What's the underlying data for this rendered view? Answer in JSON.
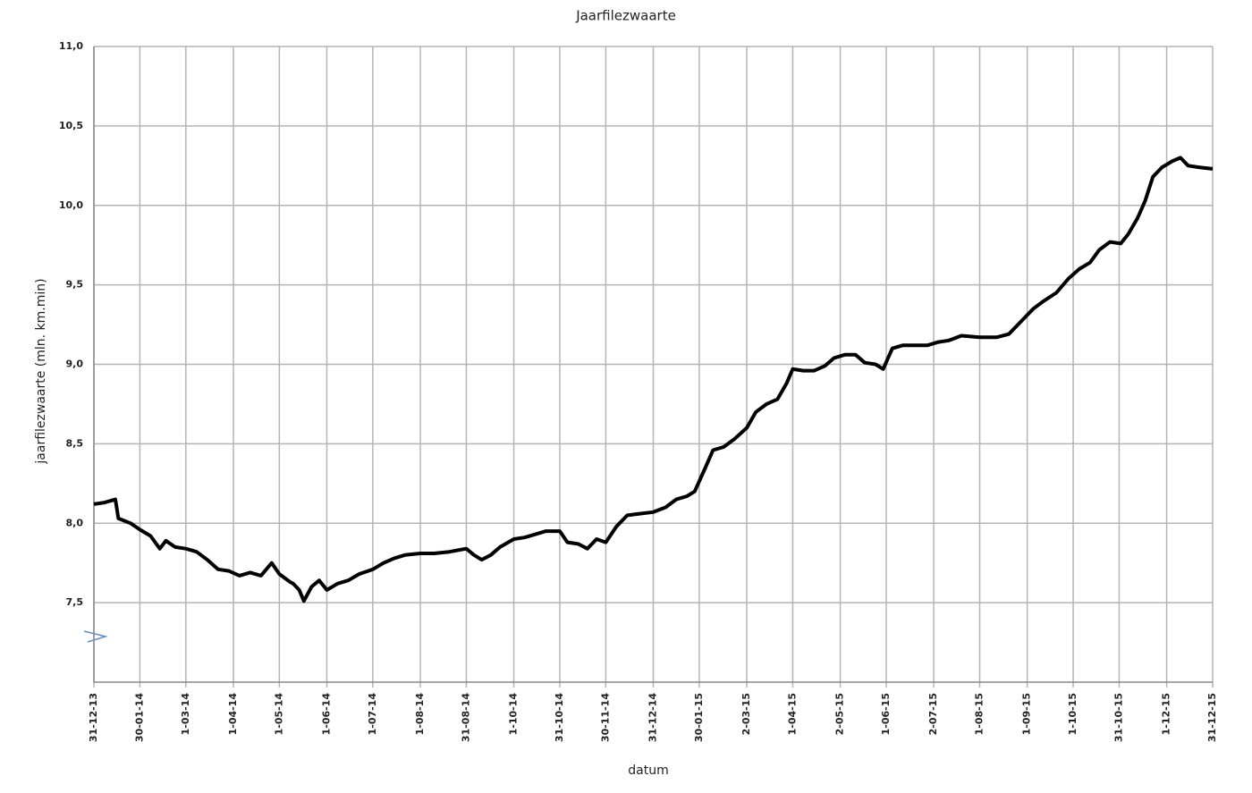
{
  "chart_data": {
    "type": "line",
    "title": "Jaarfilezwaarte",
    "x_label": "datum",
    "y_label": "jaarfilezwaarte (mln. km.min)",
    "x": [
      "2013-12-31",
      "2014-01-07",
      "2014-01-14",
      "2014-01-16",
      "2014-01-24",
      "2014-01-30",
      "2014-02-06",
      "2014-02-12",
      "2014-02-16",
      "2014-02-22",
      "2014-03-01",
      "2014-03-08",
      "2014-03-15",
      "2014-03-22",
      "2014-03-29",
      "2014-04-05",
      "2014-04-12",
      "2014-04-19",
      "2014-04-26",
      "2014-05-01",
      "2014-05-08",
      "2014-05-10",
      "2014-05-14",
      "2014-05-17",
      "2014-05-22",
      "2014-05-27",
      "2014-06-01",
      "2014-06-08",
      "2014-06-15",
      "2014-06-22",
      "2014-07-01",
      "2014-07-08",
      "2014-07-15",
      "2014-07-22",
      "2014-08-01",
      "2014-08-10",
      "2014-08-20",
      "2014-08-31",
      "2014-09-05",
      "2014-09-10",
      "2014-09-16",
      "2014-09-22",
      "2014-10-01",
      "2014-10-08",
      "2014-10-15",
      "2014-10-22",
      "2014-10-31",
      "2014-11-05",
      "2014-11-12",
      "2014-11-18",
      "2014-11-24",
      "2014-11-30",
      "2014-12-07",
      "2014-12-14",
      "2014-12-22",
      "2014-12-31",
      "2015-01-08",
      "2015-01-15",
      "2015-01-22",
      "2015-01-27",
      "2015-02-03",
      "2015-02-08",
      "2015-02-15",
      "2015-02-22",
      "2015-03-02",
      "2015-03-08",
      "2015-03-15",
      "2015-03-22",
      "2015-03-28",
      "2015-04-01",
      "2015-04-08",
      "2015-04-15",
      "2015-04-22",
      "2015-04-28",
      "2015-05-05",
      "2015-05-12",
      "2015-05-18",
      "2015-05-25",
      "2015-05-30",
      "2015-06-05",
      "2015-06-12",
      "2015-06-20",
      "2015-06-28",
      "2015-07-05",
      "2015-07-12",
      "2015-07-20",
      "2015-08-01",
      "2015-08-12",
      "2015-08-20",
      "2015-08-28",
      "2015-09-05",
      "2015-09-12",
      "2015-09-20",
      "2015-09-28",
      "2015-10-05",
      "2015-10-12",
      "2015-10-18",
      "2015-10-25",
      "2015-11-01",
      "2015-11-06",
      "2015-11-12",
      "2015-11-17",
      "2015-11-22",
      "2015-11-28",
      "2015-12-05",
      "2015-12-10",
      "2015-12-15",
      "2015-12-22",
      "2015-12-31"
    ],
    "values": [
      8.12,
      8.13,
      8.15,
      8.03,
      8.0,
      7.96,
      7.92,
      7.84,
      7.89,
      7.85,
      7.84,
      7.82,
      7.77,
      7.71,
      7.7,
      7.67,
      7.69,
      7.67,
      7.75,
      7.68,
      7.63,
      7.62,
      7.58,
      7.51,
      7.6,
      7.64,
      7.58,
      7.62,
      7.64,
      7.68,
      7.71,
      7.75,
      7.78,
      7.8,
      7.81,
      7.81,
      7.82,
      7.84,
      7.8,
      7.77,
      7.8,
      7.85,
      7.9,
      7.91,
      7.93,
      7.95,
      7.95,
      7.88,
      7.87,
      7.84,
      7.9,
      7.88,
      7.98,
      8.05,
      8.06,
      8.07,
      8.1,
      8.15,
      8.17,
      8.2,
      8.35,
      8.46,
      8.48,
      8.53,
      8.6,
      8.7,
      8.75,
      8.78,
      8.88,
      8.97,
      8.96,
      8.96,
      8.99,
      9.04,
      9.06,
      9.06,
      9.01,
      9.0,
      8.97,
      9.1,
      9.12,
      9.12,
      9.12,
      9.14,
      9.15,
      9.18,
      9.17,
      9.17,
      9.19,
      9.27,
      9.35,
      9.4,
      9.45,
      9.54,
      9.6,
      9.64,
      9.72,
      9.77,
      9.76,
      9.82,
      9.92,
      10.03,
      10.18,
      10.24,
      10.28,
      10.3,
      10.25,
      10.24,
      10.23
    ],
    "color": "#000000",
    "xlim": [
      "2013-12-31",
      "2015-12-31"
    ],
    "xticks": [
      {
        "value": "2013-12-31",
        "label": "31-12-13"
      },
      {
        "value": "2014-01-30",
        "label": "30-01-14"
      },
      {
        "value": "2014-03-01",
        "label": "1-03-14"
      },
      {
        "value": "2014-04-01",
        "label": "1-04-14"
      },
      {
        "value": "2014-05-01",
        "label": "1-05-14"
      },
      {
        "value": "2014-06-01",
        "label": "1-06-14"
      },
      {
        "value": "2014-07-01",
        "label": "1-07-14"
      },
      {
        "value": "2014-08-01",
        "label": "1-08-14"
      },
      {
        "value": "2014-08-31",
        "label": "31-08-14"
      },
      {
        "value": "2014-10-01",
        "label": "1-10-14"
      },
      {
        "value": "2014-10-31",
        "label": "31-10-14"
      },
      {
        "value": "2014-11-30",
        "label": "30-11-14"
      },
      {
        "value": "2014-12-31",
        "label": "31-12-14"
      },
      {
        "value": "2015-01-30",
        "label": "30-01-15"
      },
      {
        "value": "2015-03-02",
        "label": "2-03-15"
      },
      {
        "value": "2015-04-01",
        "label": "1-04-15"
      },
      {
        "value": "2015-05-02",
        "label": "2-05-15"
      },
      {
        "value": "2015-06-01",
        "label": "1-06-15"
      },
      {
        "value": "2015-07-02",
        "label": "2-07-15"
      },
      {
        "value": "2015-08-01",
        "label": "1-08-15"
      },
      {
        "value": "2015-09-01",
        "label": "1-09-15"
      },
      {
        "value": "2015-10-01",
        "label": "1-10-15"
      },
      {
        "value": "2015-10-31",
        "label": "31-10-15"
      },
      {
        "value": "2015-12-01",
        "label": "1-12-15"
      },
      {
        "value": "2015-12-31",
        "label": "31-12-15"
      }
    ],
    "ylim": [
      7.0,
      11.0
    ],
    "yticks": [
      {
        "value": 7.5,
        "label": "7,5"
      },
      {
        "value": 8.0,
        "label": "8,0"
      },
      {
        "value": 8.5,
        "label": "8,5"
      },
      {
        "value": 9.0,
        "label": "9,0"
      },
      {
        "value": 9.5,
        "label": "9,5"
      },
      {
        "value": 10.0,
        "label": "10,0"
      },
      {
        "value": 10.5,
        "label": "10,5"
      },
      {
        "value": 11.0,
        "label": "11,0"
      }
    ],
    "grid": true
  }
}
